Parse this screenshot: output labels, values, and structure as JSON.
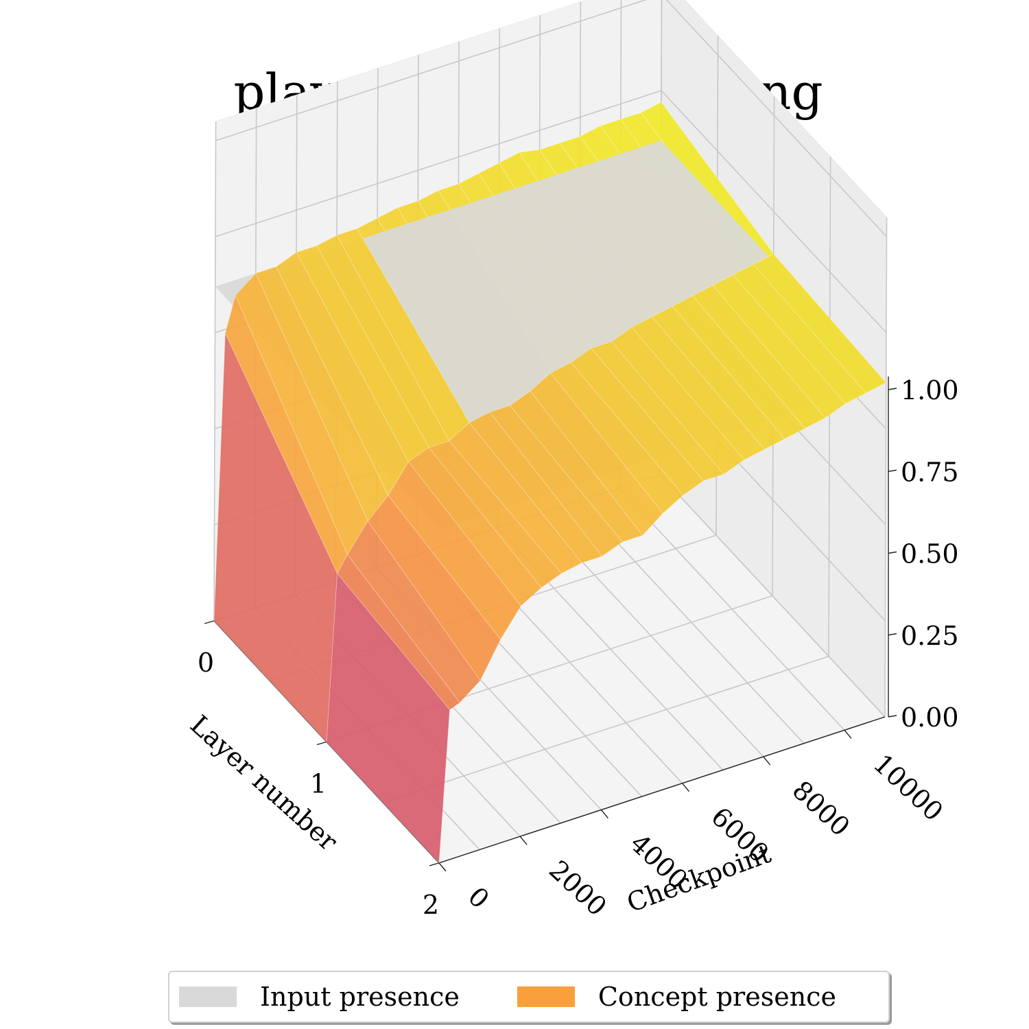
{
  "chart_data": {
    "type": "surface",
    "title": "play_center_in_opening",
    "x_axis": {
      "label": "Checkpoint",
      "ticks": [
        0,
        2000,
        4000,
        6000,
        8000,
        10000
      ],
      "range": [
        0,
        11000
      ]
    },
    "y_axis": {
      "label": "Layer number",
      "ticks": [
        0,
        1,
        2
      ],
      "range": [
        0,
        2
      ]
    },
    "z_axis": {
      "label": "",
      "ticks": [
        "0.00",
        "0.25",
        "0.50",
        "0.75",
        "1.00"
      ],
      "range": [
        0,
        1
      ]
    },
    "grid": true,
    "legend_placement": "bottom",
    "checkpoints": [
      0,
      250,
      500,
      1000,
      1500,
      2000,
      2500,
      3000,
      3500,
      4000,
      4500,
      5000,
      5500,
      6000,
      6500,
      7000,
      7500,
      8000,
      8500,
      9000,
      9500,
      10000,
      10500,
      11000
    ],
    "layers": [
      0,
      1,
      2
    ],
    "series": [
      {
        "name": "Input presence",
        "color": "#d9d9d9",
        "type": "plane",
        "values": [
          [
            0.87,
            0.87
          ],
          [
            0.87,
            0.87
          ]
        ]
      },
      {
        "name": "Concept presence",
        "color": "#f9a03c",
        "colormap": "plasma",
        "values": [
          [
            0.0,
            0.74,
            0.83,
            0.87,
            0.87,
            0.89,
            0.89,
            0.9,
            0.9,
            0.91,
            0.92,
            0.92,
            0.93,
            0.93,
            0.94,
            0.95,
            0.96,
            0.95,
            0.95,
            0.95,
            0.96,
            0.96,
            0.96,
            0.97
          ],
          [
            0.0,
            0.43,
            0.47,
            0.54,
            0.59,
            0.66,
            0.68,
            0.68,
            0.71,
            0.72,
            0.72,
            0.74,
            0.77,
            0.78,
            0.8,
            0.8,
            0.82,
            0.83,
            0.84,
            0.85,
            0.86,
            0.87,
            0.88,
            0.89
          ],
          [
            0.0,
            0.39,
            0.4,
            0.44,
            0.53,
            0.6,
            0.63,
            0.65,
            0.66,
            0.66,
            0.68,
            0.68,
            0.72,
            0.75,
            0.77,
            0.77,
            0.79,
            0.8,
            0.81,
            0.82,
            0.83,
            0.85,
            0.86,
            0.87
          ]
        ]
      }
    ]
  }
}
